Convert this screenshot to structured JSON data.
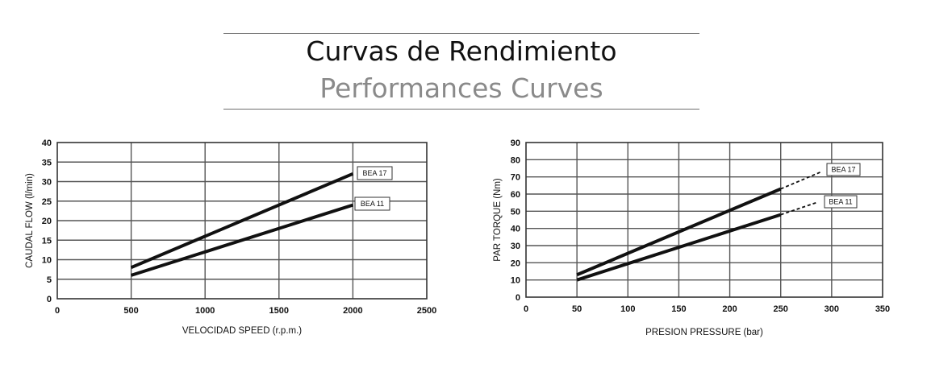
{
  "header": {
    "title_es": "Curvas de Rendimiento",
    "title_en": "Performances Curves"
  },
  "chart_data": [
    {
      "type": "line",
      "xlabel": "VELOCIDAD SPEED (r.p.m.)",
      "ylabel": "CAUDAL FLOW (l/min)",
      "xlim": [
        0,
        2500
      ],
      "ylim": [
        0,
        40
      ],
      "xticks": [
        0,
        500,
        1000,
        1500,
        2000,
        2500
      ],
      "yticks": [
        0,
        5,
        10,
        15,
        20,
        25,
        30,
        35,
        40
      ],
      "grid": true,
      "series": [
        {
          "name": "BEA 17",
          "x": [
            500,
            2000
          ],
          "y": [
            8,
            32
          ]
        },
        {
          "name": "BEA 11",
          "x": [
            500,
            2000
          ],
          "y": [
            6,
            24
          ]
        }
      ]
    },
    {
      "type": "line",
      "xlabel": "PRESION PRESSURE (bar)",
      "ylabel": "PAR TORQUE (Nm)",
      "xlim": [
        0,
        350
      ],
      "ylim": [
        0,
        90
      ],
      "xticks": [
        0,
        50,
        100,
        150,
        200,
        250,
        300,
        350
      ],
      "yticks": [
        0,
        10,
        20,
        30,
        40,
        50,
        60,
        70,
        80,
        90
      ],
      "grid": true,
      "series": [
        {
          "name": "BEA 17",
          "x": [
            50,
            250
          ],
          "y": [
            13,
            63
          ],
          "extension": {
            "x": [
              250,
              290
            ],
            "y": [
              63,
              73
            ]
          }
        },
        {
          "name": "BEA 11",
          "x": [
            50,
            250
          ],
          "y": [
            10,
            48
          ],
          "extension": {
            "x": [
              250,
              285
            ],
            "y": [
              48,
              55
            ]
          }
        }
      ]
    }
  ]
}
